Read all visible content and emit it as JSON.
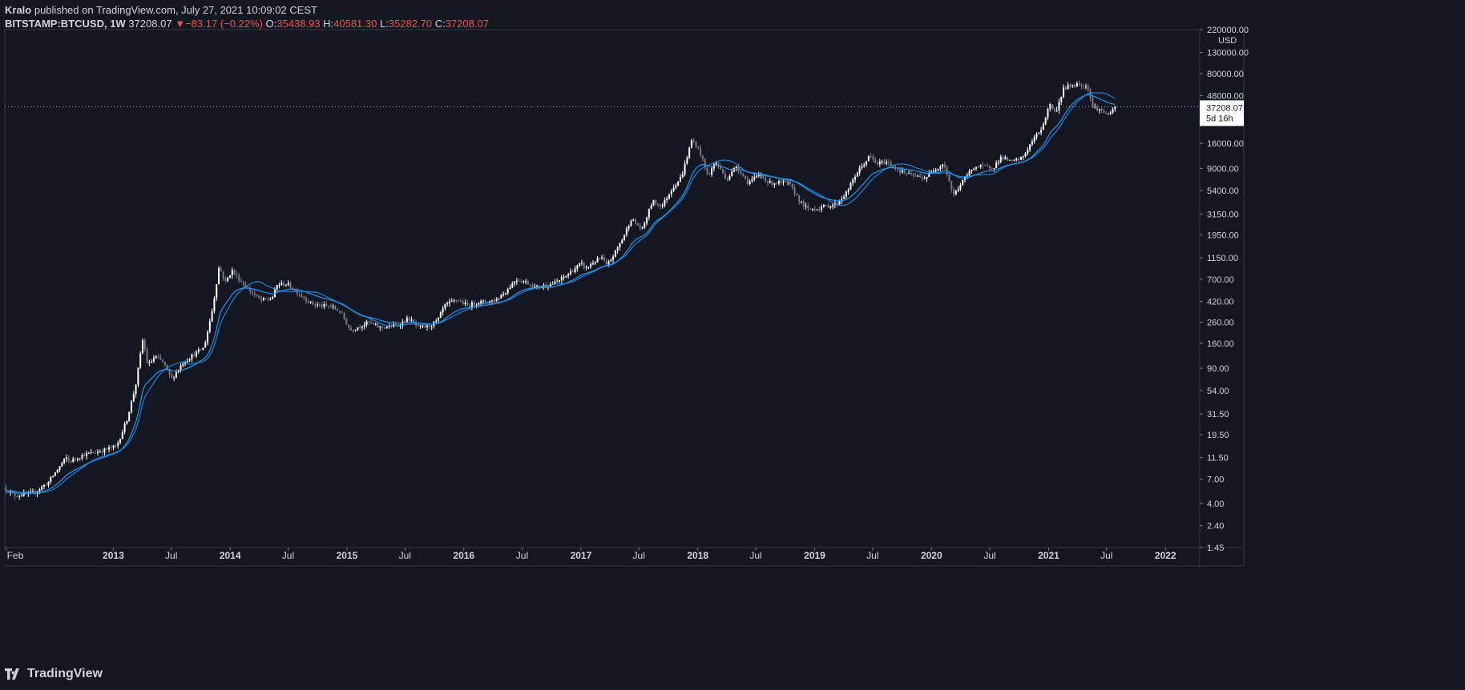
{
  "header": {
    "author": "Kralo",
    "published_text": " published on TradingView.com, July 27, 2021 10:09:02 CEST",
    "symbol": "BITSTAMP:BTCUSD, 1W",
    "last": "37208.07",
    "change": "−83.17 (−0.22%)",
    "open_label": "O:",
    "open": "35438.93",
    "high_label": "H:",
    "high": "40581.30",
    "low_label": "L:",
    "low": "35282.70",
    "close_label": "C:",
    "close": "37208.07"
  },
  "footer": {
    "brand": "TradingView",
    "logo_icon": "tradingview-logo-icon"
  },
  "colors": {
    "background": "#131722",
    "candle": "#ffffff",
    "candle_dim": "#787b86",
    "ma": "#2196f3",
    "text": "#d1d4dc",
    "down": "#ef5350"
  },
  "chart_data": {
    "type": "candlestick",
    "symbol": "BITSTAMP:BTCUSD",
    "interval": "1W",
    "y_scale": "log",
    "y_unit": "USD",
    "ylim": [
      1.45,
      220000
    ],
    "xlim": [
      "2012-01-28",
      "2022-04-18"
    ],
    "y_ticks": [
      "220000.00",
      "130000.00",
      "80000.00",
      "48000.00",
      "16000.00",
      "9000.00",
      "5400.00",
      "3150.00",
      "1950.00",
      "1150.00",
      "700.00",
      "420.00",
      "260.00",
      "160.00",
      "90.00",
      "54.00",
      "31.50",
      "19.50",
      "11.50",
      "7.00",
      "4.00",
      "2.40",
      "1.45"
    ],
    "x_ticks": [
      {
        "label": "Feb",
        "date": "2012-02-01"
      },
      {
        "label": "2013",
        "date": "2013-01-01"
      },
      {
        "label": "Jul",
        "date": "2013-07-01"
      },
      {
        "label": "2014",
        "date": "2014-01-01"
      },
      {
        "label": "Jul",
        "date": "2014-07-01"
      },
      {
        "label": "2015",
        "date": "2015-01-01"
      },
      {
        "label": "Jul",
        "date": "2015-07-01"
      },
      {
        "label": "2016",
        "date": "2016-01-01"
      },
      {
        "label": "Jul",
        "date": "2016-07-01"
      },
      {
        "label": "2017",
        "date": "2017-01-01"
      },
      {
        "label": "Jul",
        "date": "2017-07-01"
      },
      {
        "label": "2018",
        "date": "2018-01-01"
      },
      {
        "label": "Jul",
        "date": "2018-07-01"
      },
      {
        "label": "2019",
        "date": "2019-01-01"
      },
      {
        "label": "Jul",
        "date": "2019-07-01"
      },
      {
        "label": "2020",
        "date": "2020-01-01"
      },
      {
        "label": "Jul",
        "date": "2020-07-01"
      },
      {
        "label": "2021",
        "date": "2021-01-01"
      },
      {
        "label": "Jul",
        "date": "2021-07-01"
      },
      {
        "label": "2022",
        "date": "2022-01-01"
      }
    ],
    "price_path": [
      [
        "2012-01-28",
        5.8
      ],
      [
        "2012-03-01",
        4.8
      ],
      [
        "2012-05-01",
        5.1
      ],
      [
        "2012-06-15",
        6.5
      ],
      [
        "2012-08-10",
        11.5
      ],
      [
        "2012-08-20",
        10.5
      ],
      [
        "2012-10-01",
        12.2
      ],
      [
        "2012-12-01",
        13.5
      ],
      [
        "2013-01-15",
        15
      ],
      [
        "2013-02-15",
        27
      ],
      [
        "2013-03-15",
        60
      ],
      [
        "2013-04-07",
        180
      ],
      [
        "2013-04-22",
        95
      ],
      [
        "2013-05-15",
        118
      ],
      [
        "2013-06-10",
        103
      ],
      [
        "2013-07-05",
        70
      ],
      [
        "2013-08-10",
        103
      ],
      [
        "2013-09-15",
        125
      ],
      [
        "2013-10-15",
        145
      ],
      [
        "2013-11-10",
        350
      ],
      [
        "2013-12-01",
        950
      ],
      [
        "2013-12-20",
        650
      ],
      [
        "2014-01-10",
        860
      ],
      [
        "2014-02-10",
        650
      ],
      [
        "2014-03-01",
        560
      ],
      [
        "2014-04-10",
        430
      ],
      [
        "2014-05-15",
        450
      ],
      [
        "2014-06-01",
        620
      ],
      [
        "2014-07-01",
        630
      ],
      [
        "2014-08-15",
        480
      ],
      [
        "2014-09-15",
        400
      ],
      [
        "2014-10-15",
        380
      ],
      [
        "2014-11-15",
        375
      ],
      [
        "2014-12-15",
        330
      ],
      [
        "2015-01-15",
        215
      ],
      [
        "2015-02-15",
        240
      ],
      [
        "2015-03-15",
        260
      ],
      [
        "2015-04-15",
        230
      ],
      [
        "2015-05-15",
        235
      ],
      [
        "2015-06-15",
        245
      ],
      [
        "2015-07-15",
        285
      ],
      [
        "2015-08-15",
        230
      ],
      [
        "2015-09-15",
        235
      ],
      [
        "2015-10-15",
        270
      ],
      [
        "2015-11-05",
        380
      ],
      [
        "2015-12-15",
        440
      ],
      [
        "2016-01-15",
        380
      ],
      [
        "2016-02-15",
        410
      ],
      [
        "2016-03-15",
        415
      ],
      [
        "2016-04-15",
        440
      ],
      [
        "2016-05-15",
        530
      ],
      [
        "2016-06-15",
        700
      ],
      [
        "2016-07-15",
        660
      ],
      [
        "2016-08-15",
        580
      ],
      [
        "2016-09-15",
        605
      ],
      [
        "2016-10-15",
        640
      ],
      [
        "2016-11-15",
        740
      ],
      [
        "2016-12-15",
        890
      ],
      [
        "2017-01-05",
        1000
      ],
      [
        "2017-01-20",
        900
      ],
      [
        "2017-02-15",
        1050
      ],
      [
        "2017-03-10",
        1150
      ],
      [
        "2017-03-25",
        950
      ],
      [
        "2017-04-15",
        1200
      ],
      [
        "2017-05-15",
        1800
      ],
      [
        "2017-06-10",
        2800
      ],
      [
        "2017-07-15",
        2200
      ],
      [
        "2017-08-15",
        4200
      ],
      [
        "2017-09-15",
        3800
      ],
      [
        "2017-10-15",
        5600
      ],
      [
        "2017-11-15",
        7500
      ],
      [
        "2017-12-17",
        17500
      ],
      [
        "2018-01-10",
        13500
      ],
      [
        "2018-02-05",
        7500
      ],
      [
        "2018-03-01",
        10500
      ],
      [
        "2018-04-05",
        7000
      ],
      [
        "2018-05-05",
        9500
      ],
      [
        "2018-06-10",
        6500
      ],
      [
        "2018-07-20",
        7800
      ],
      [
        "2018-08-15",
        6400
      ],
      [
        "2018-09-15",
        6500
      ],
      [
        "2018-10-15",
        6400
      ],
      [
        "2018-11-25",
        4000
      ],
      [
        "2018-12-15",
        3500
      ],
      [
        "2019-01-15",
        3600
      ],
      [
        "2019-02-15",
        3800
      ],
      [
        "2019-03-15",
        4000
      ],
      [
        "2019-04-15",
        5200
      ],
      [
        "2019-05-15",
        8000
      ],
      [
        "2019-06-26",
        12000
      ],
      [
        "2019-07-15",
        10000
      ],
      [
        "2019-08-15",
        10500
      ],
      [
        "2019-09-15",
        9000
      ],
      [
        "2019-10-15",
        8000
      ],
      [
        "2019-11-15",
        7500
      ],
      [
        "2019-12-15",
        7200
      ],
      [
        "2020-01-15",
        8800
      ],
      [
        "2020-02-12",
        10200
      ],
      [
        "2020-03-13",
        4800
      ],
      [
        "2020-04-15",
        7000
      ],
      [
        "2020-05-15",
        9300
      ],
      [
        "2020-06-15",
        9400
      ],
      [
        "2020-07-15",
        9200
      ],
      [
        "2020-08-10",
        11700
      ],
      [
        "2020-09-10",
        10400
      ],
      [
        "2020-10-15",
        11500
      ],
      [
        "2020-11-15",
        17000
      ],
      [
        "2020-12-15",
        23000
      ],
      [
        "2021-01-08",
        40000
      ],
      [
        "2021-01-25",
        32000
      ],
      [
        "2021-02-20",
        56000
      ],
      [
        "2021-03-13",
        61000
      ],
      [
        "2021-04-14",
        63000
      ],
      [
        "2021-05-10",
        57000
      ],
      [
        "2021-05-20",
        37000
      ],
      [
        "2021-06-05",
        36000
      ],
      [
        "2021-06-22",
        33000
      ],
      [
        "2021-07-20",
        31000
      ],
      [
        "2021-07-27",
        37208.07
      ]
    ],
    "moving_averages": [
      {
        "name": "",
        "type": "EMA",
        "length": 21,
        "color": "#2196f3"
      },
      {
        "name": "",
        "type": "SMA",
        "length": 20,
        "color": "#2196f3"
      }
    ],
    "last_price": {
      "value": "37208.07",
      "countdown": "5d 16h"
    }
  }
}
